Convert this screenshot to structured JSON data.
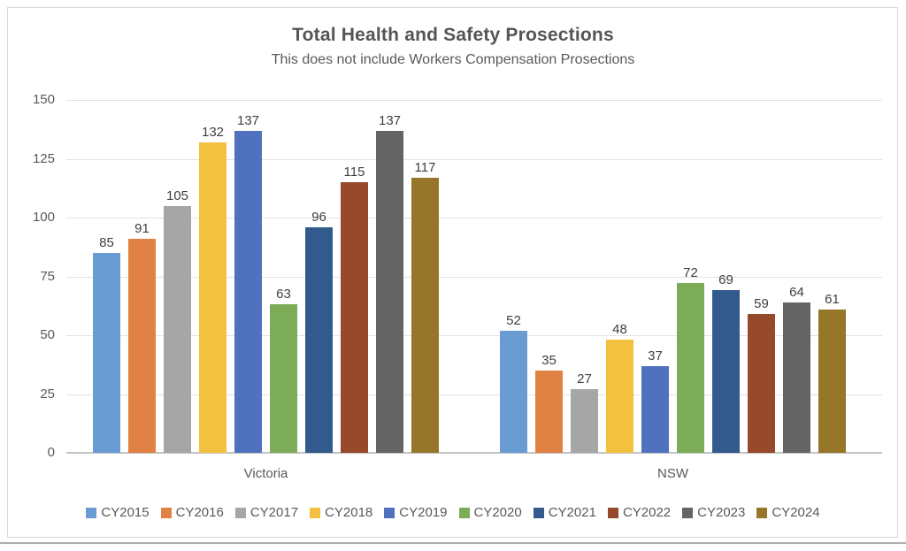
{
  "chart_data": {
    "type": "bar",
    "title": "Total Health and Safety Prosections",
    "subtitle": "This does not include Workers Compensation  Prosections",
    "categories": [
      "Victoria",
      "NSW"
    ],
    "series": [
      {
        "name": "CY2015",
        "color": "#6A9CD4",
        "values": [
          85,
          52
        ]
      },
      {
        "name": "CY2016",
        "color": "#DF8244",
        "values": [
          91,
          35
        ]
      },
      {
        "name": "CY2017",
        "color": "#A6A6A6",
        "values": [
          105,
          27
        ]
      },
      {
        "name": "CY2018",
        "color": "#F3C13F",
        "values": [
          132,
          48
        ]
      },
      {
        "name": "CY2019",
        "color": "#4F71BE",
        "values": [
          137,
          37
        ]
      },
      {
        "name": "CY2020",
        "color": "#7CAC57",
        "values": [
          63,
          72
        ]
      },
      {
        "name": "CY2021",
        "color": "#335A8D",
        "values": [
          96,
          69
        ]
      },
      {
        "name": "CY2022",
        "color": "#96492B",
        "values": [
          115,
          59
        ]
      },
      {
        "name": "CY2023",
        "color": "#646464",
        "values": [
          137,
          64
        ]
      },
      {
        "name": "CY2024",
        "color": "#967628",
        "values": [
          117,
          61
        ]
      }
    ],
    "ylim": [
      0,
      150
    ],
    "yticks": [
      0,
      25,
      50,
      75,
      100,
      125,
      150
    ],
    "grid": true,
    "legend_position": "bottom",
    "value_labels_shown": true
  }
}
